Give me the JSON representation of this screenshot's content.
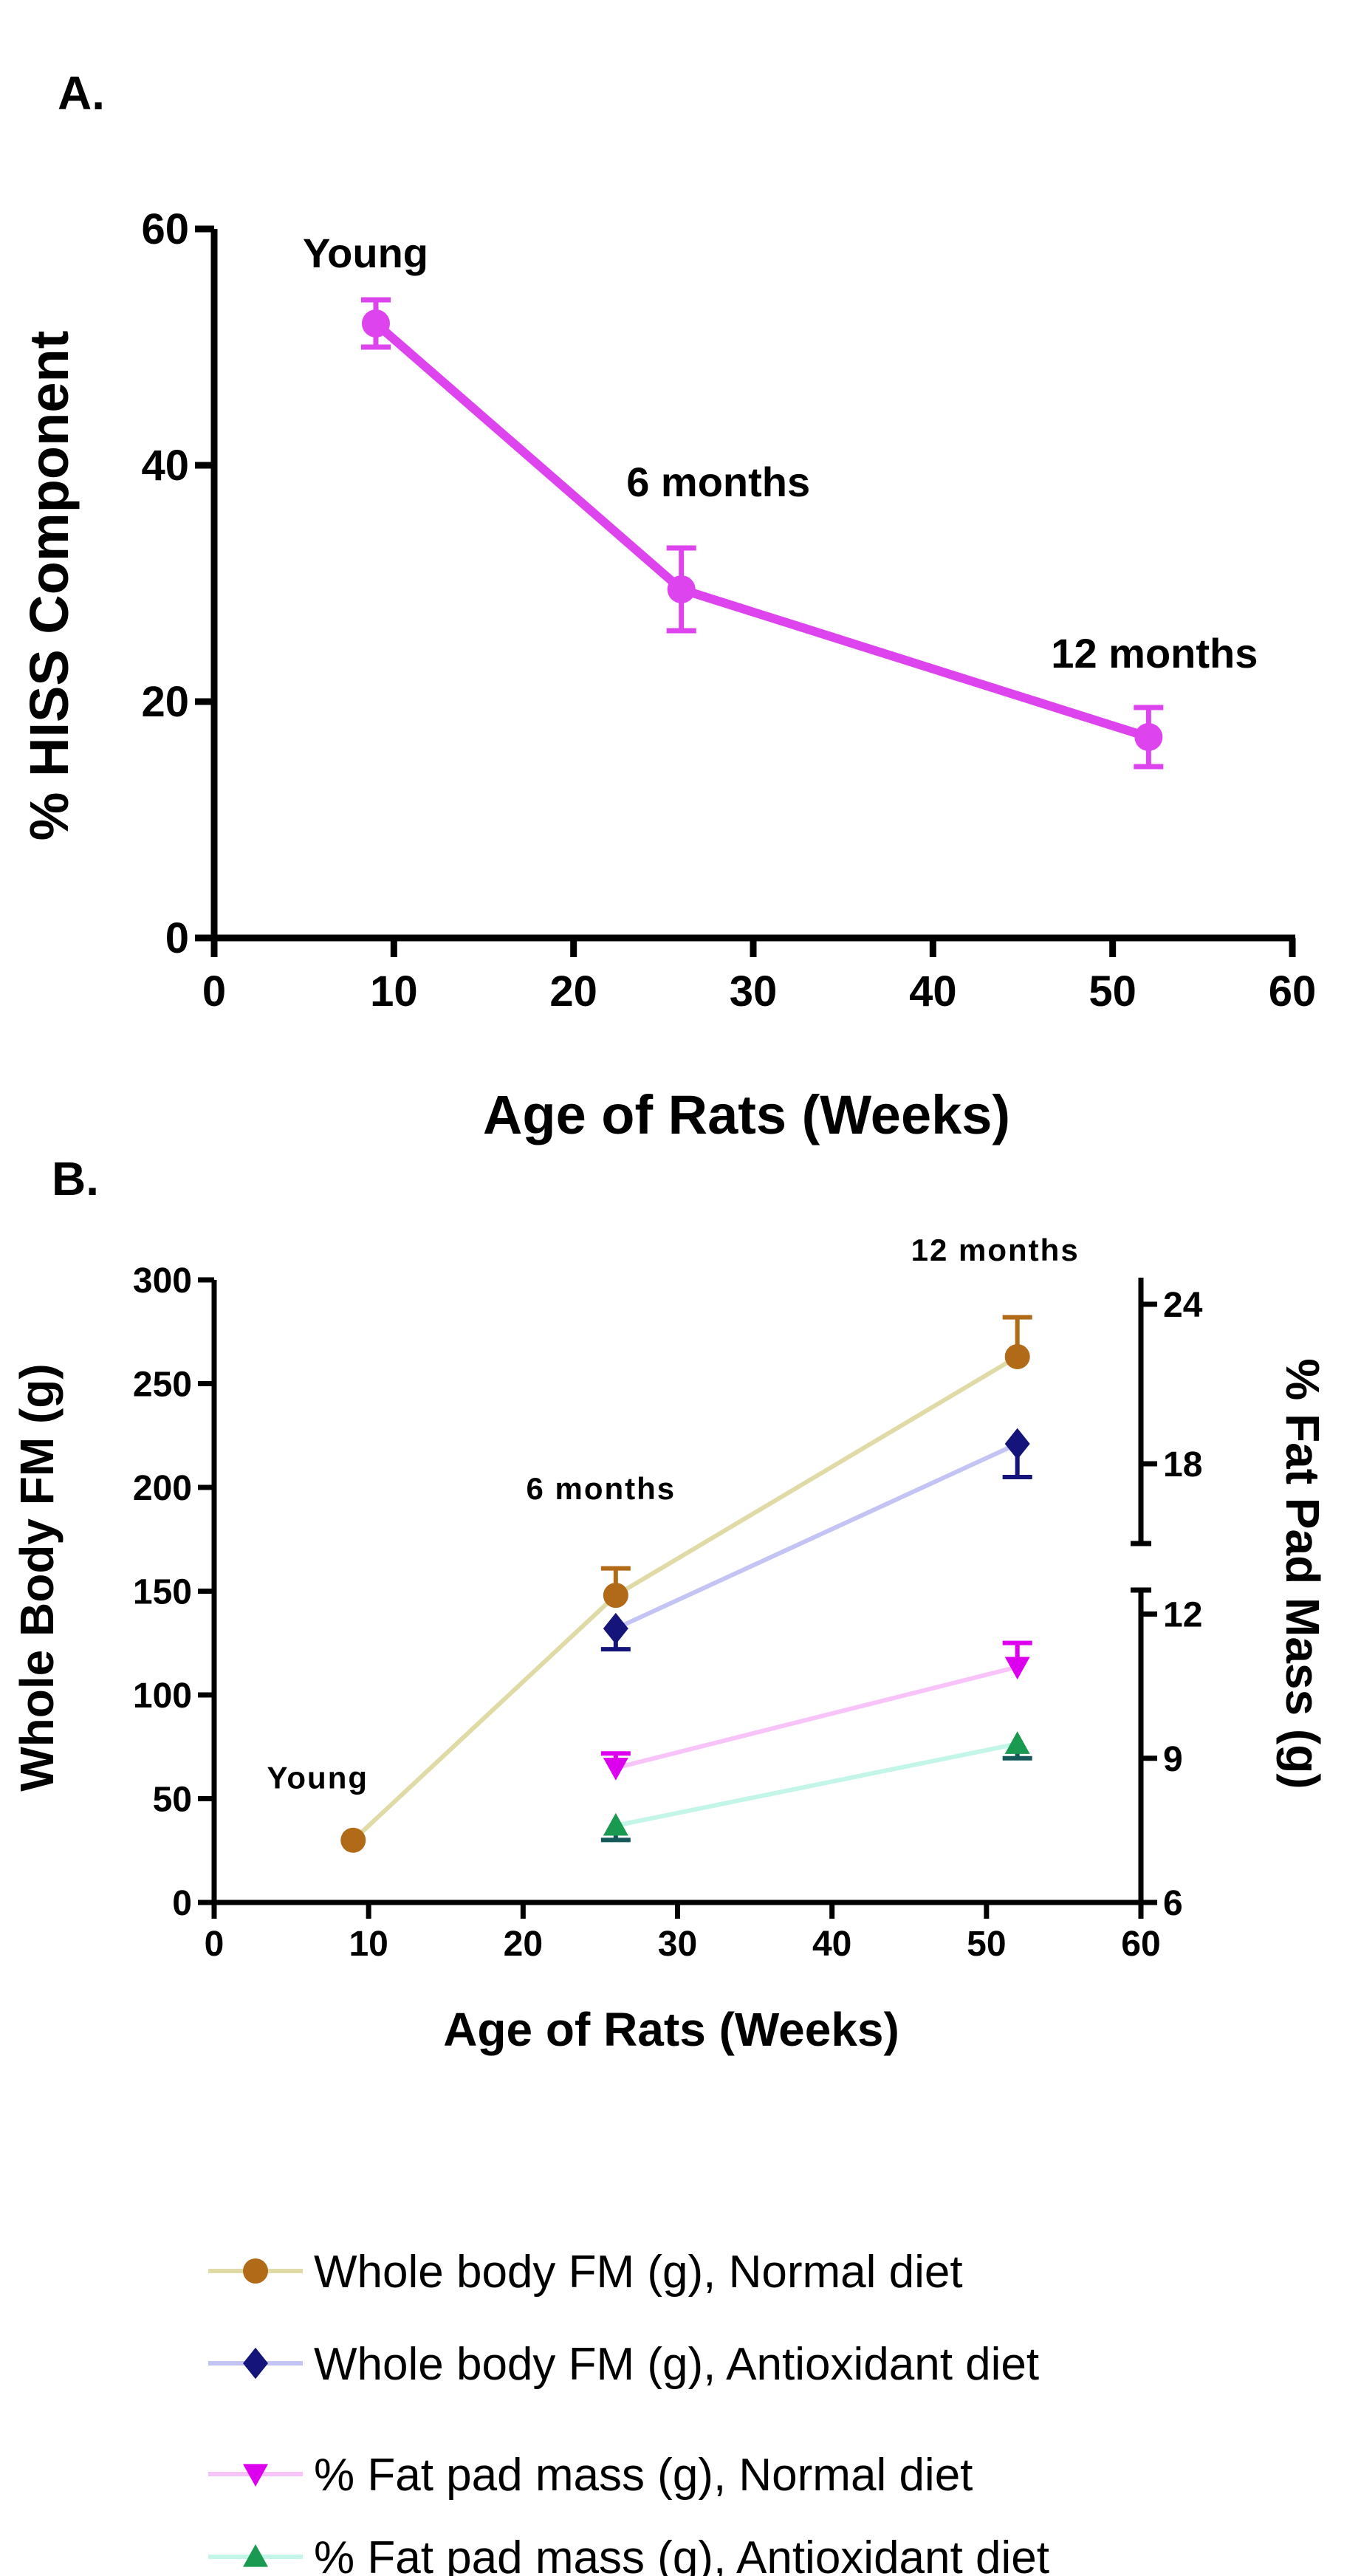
{
  "chart_data": [
    {
      "panel": "A.",
      "type": "line",
      "xlabel": "Age of Rats (Weeks)",
      "ylabel": "% HISS Component",
      "xlim": [
        0,
        60
      ],
      "ylim": [
        0,
        60
      ],
      "xticks": [
        0,
        10,
        20,
        30,
        40,
        50,
        60
      ],
      "yticks": [
        0,
        20,
        40,
        60
      ],
      "color": "#dd44ee",
      "series": [
        {
          "name": "% HISS Component",
          "x": [
            9,
            26,
            52
          ],
          "y": [
            52,
            29.5,
            17
          ],
          "err": [
            2,
            3.5,
            2.5
          ]
        }
      ],
      "annotations": [
        {
          "text": "Young",
          "x": 9,
          "y": 52
        },
        {
          "text": "6 months",
          "x": 26,
          "y": 29.5
        },
        {
          "text": "12 months",
          "x": 52,
          "y": 17
        }
      ]
    },
    {
      "panel": "B.",
      "type": "line",
      "xlabel": "Age of Rats (Weeks)",
      "ylabel": "Whole Body FM (g)",
      "y2label": "% Fat Pad Mass (g)",
      "xlim": [
        0,
        60
      ],
      "ylim": [
        0,
        300
      ],
      "y2_segments": [
        [
          6,
          12.5
        ],
        [
          15,
          25
        ]
      ],
      "xticks": [
        0,
        10,
        20,
        30,
        40,
        50,
        60
      ],
      "yticks": [
        0,
        50,
        100,
        150,
        200,
        250,
        300
      ],
      "y2ticks": [
        6,
        9,
        12,
        18,
        24
      ],
      "series": [
        {
          "name": "Whole body FM (g), Normal diet",
          "axis": "left",
          "line_color": "#e0dba6",
          "marker_color": "#b06a18",
          "marker": "circle",
          "x": [
            9,
            26,
            52
          ],
          "y": [
            30,
            148,
            263
          ],
          "err": [
            0,
            13,
            19
          ],
          "err_dir": "up"
        },
        {
          "name": "Whole body FM (g), Antioxidant diet",
          "axis": "left",
          "line_color": "#c3c3f4",
          "marker_color": "#14147a",
          "marker": "diamond",
          "x": [
            26,
            52
          ],
          "y": [
            132,
            221
          ],
          "err": [
            10,
            16
          ],
          "err_dir": "down"
        },
        {
          "name": "% Fat pad mass (g), Normal diet",
          "axis": "right",
          "line_color": "#f8c3f8",
          "marker_color": "#dd00ee",
          "marker": "triangle-down",
          "x": [
            26,
            52
          ],
          "y": [
            8.8,
            10.9
          ],
          "err": [
            0.3,
            0.5
          ],
          "err_dir": "up"
        },
        {
          "name": "% Fat pad mass (g), Antioxidant diet",
          "axis": "right",
          "line_color": "#c3f6e8",
          "marker_color": "#1a9950",
          "marker": "triangle-up",
          "x": [
            26,
            52
          ],
          "y": [
            7.6,
            9.3
          ],
          "err": [
            0.3,
            0.3
          ],
          "err_dir": "down",
          "err_color": "#14585a"
        }
      ],
      "annotations": [
        {
          "text": "Young",
          "x": 9,
          "y": 30
        },
        {
          "text": "6 months",
          "x": 26,
          "y": 148
        },
        {
          "text": "12 months",
          "x": 52,
          "y": 263
        }
      ]
    }
  ]
}
